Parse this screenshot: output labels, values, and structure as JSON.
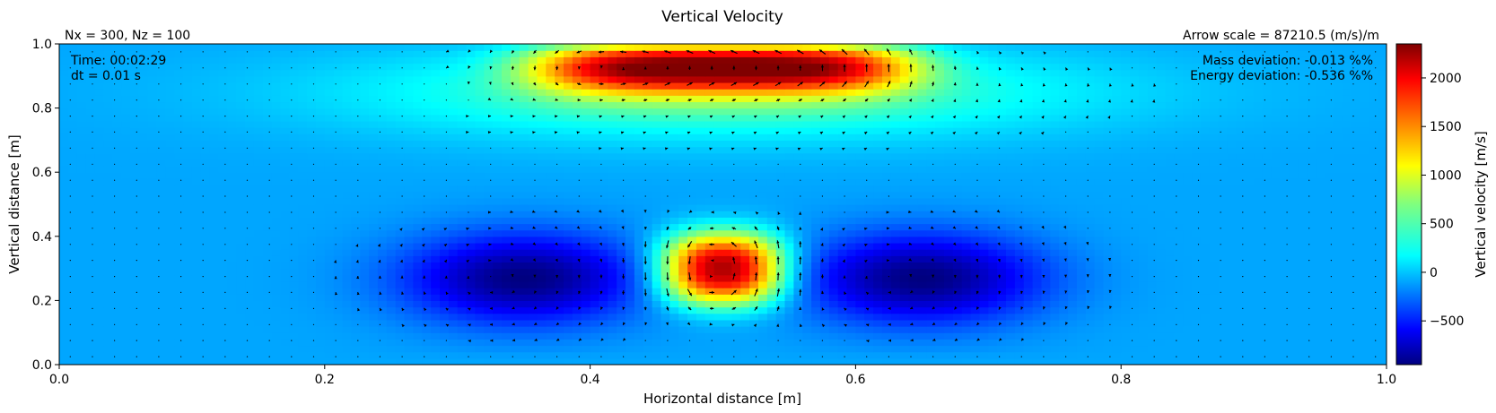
{
  "chart_data": {
    "type": "heatmap",
    "title": "Vertical Velocity",
    "xlabel": "Horizontal distance [m]",
    "ylabel": "Vertical distance [m]",
    "xlim": [
      0.0,
      1.0
    ],
    "ylim": [
      0.0,
      1.0
    ],
    "xticks": [
      "0.0",
      "0.2",
      "0.4",
      "0.6",
      "0.8",
      "1.0"
    ],
    "yticks": [
      "0.0",
      "0.2",
      "0.4",
      "0.6",
      "0.8",
      "1.0"
    ],
    "grid": false,
    "colormap": "jet",
    "colorbar": {
      "label": "Vertical velocity [m/s]",
      "range": [
        -950,
        2350
      ],
      "ticks": [
        "-500",
        "0",
        "500",
        "1000",
        "1500",
        "2000"
      ]
    },
    "features": [
      {
        "kind": "positive_peak",
        "x": 0.5,
        "y": 0.3,
        "value": 2300,
        "sx": 0.045,
        "sz": 0.11
      },
      {
        "kind": "negative_lobe",
        "x": 0.35,
        "y": 0.27,
        "value": -950,
        "sx": 0.09,
        "sz": 0.14
      },
      {
        "kind": "negative_lobe",
        "x": 0.65,
        "y": 0.27,
        "value": -950,
        "sx": 0.09,
        "sz": 0.14
      },
      {
        "kind": "positive_band",
        "x": 0.5,
        "y": 0.93,
        "value": 2100,
        "sx": 0.14,
        "sz": 0.08
      },
      {
        "kind": "positive_halo",
        "x": 0.5,
        "y": 0.85,
        "value": 600,
        "sx": 0.27,
        "sz": 0.14
      }
    ],
    "annotations": {
      "grid_info": "Nx = 300, Nz = 100",
      "arrow_scale": "Arrow scale = 87210.5 (m/s)/m",
      "time": "Time: 00:02:29",
      "dt": "dt = 0.01 s",
      "mass_deviation": "Mass deviation: -0.013 %%",
      "energy_deviation": "Energy deviation: -0.536 %%"
    }
  }
}
